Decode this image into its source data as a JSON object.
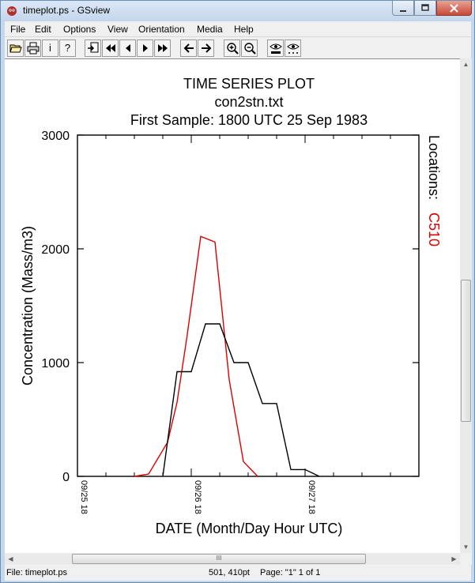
{
  "window": {
    "title": "timeplot.ps - GSview"
  },
  "menu": [
    "File",
    "Edit",
    "Options",
    "View",
    "Orientation",
    "Media",
    "Help"
  ],
  "toolbar": {
    "info": "i",
    "help": "?"
  },
  "statusbar": {
    "file": "File: timeplot.ps",
    "coords": "501, 410pt",
    "page": "Page: \"1\"  1 of 1"
  },
  "scrollbar": {
    "h_grip": "III"
  },
  "plot": {
    "title_lines": [
      "TIME SERIES PLOT",
      "con2stn.txt",
      "First Sample: 1800 UTC 25 Sep 1983"
    ],
    "location_label": "Locations:",
    "location_name": "C510",
    "colors": {
      "black_series": "#000000",
      "red_series": "#dd0000"
    }
  },
  "chart_data": {
    "type": "line",
    "title": "TIME SERIES PLOT",
    "xlabel": "DATE (Month/Day Hour UTC)",
    "ylabel": "Concentration (Mass/m3)",
    "ylim": [
      0,
      3000
    ],
    "xlim": [
      0,
      72
    ],
    "x_unit": "hours after 09/25 18 UTC",
    "y_ticks": [
      0,
      1000,
      2000,
      3000
    ],
    "x_ticks": [
      {
        "x": 0,
        "label": "09/25 18"
      },
      {
        "x": 24,
        "label": "09/26 18"
      },
      {
        "x": 48,
        "label": "09/27 18"
      }
    ],
    "series": [
      {
        "name": "C510",
        "color": "#dd0000",
        "x": [
          12,
          15,
          19,
          21,
          23,
          26,
          29,
          32,
          35,
          38
        ],
        "y": [
          0,
          20,
          300,
          650,
          1200,
          2110,
          2060,
          850,
          130,
          0
        ]
      },
      {
        "color": "#000000",
        "x": [
          18,
          21,
          24,
          27,
          30,
          33,
          36,
          39,
          42,
          45,
          48,
          51
        ],
        "y": [
          0,
          920,
          920,
          1340,
          1340,
          1000,
          1000,
          640,
          640,
          60,
          60,
          0
        ]
      }
    ],
    "legend": "top-right"
  }
}
